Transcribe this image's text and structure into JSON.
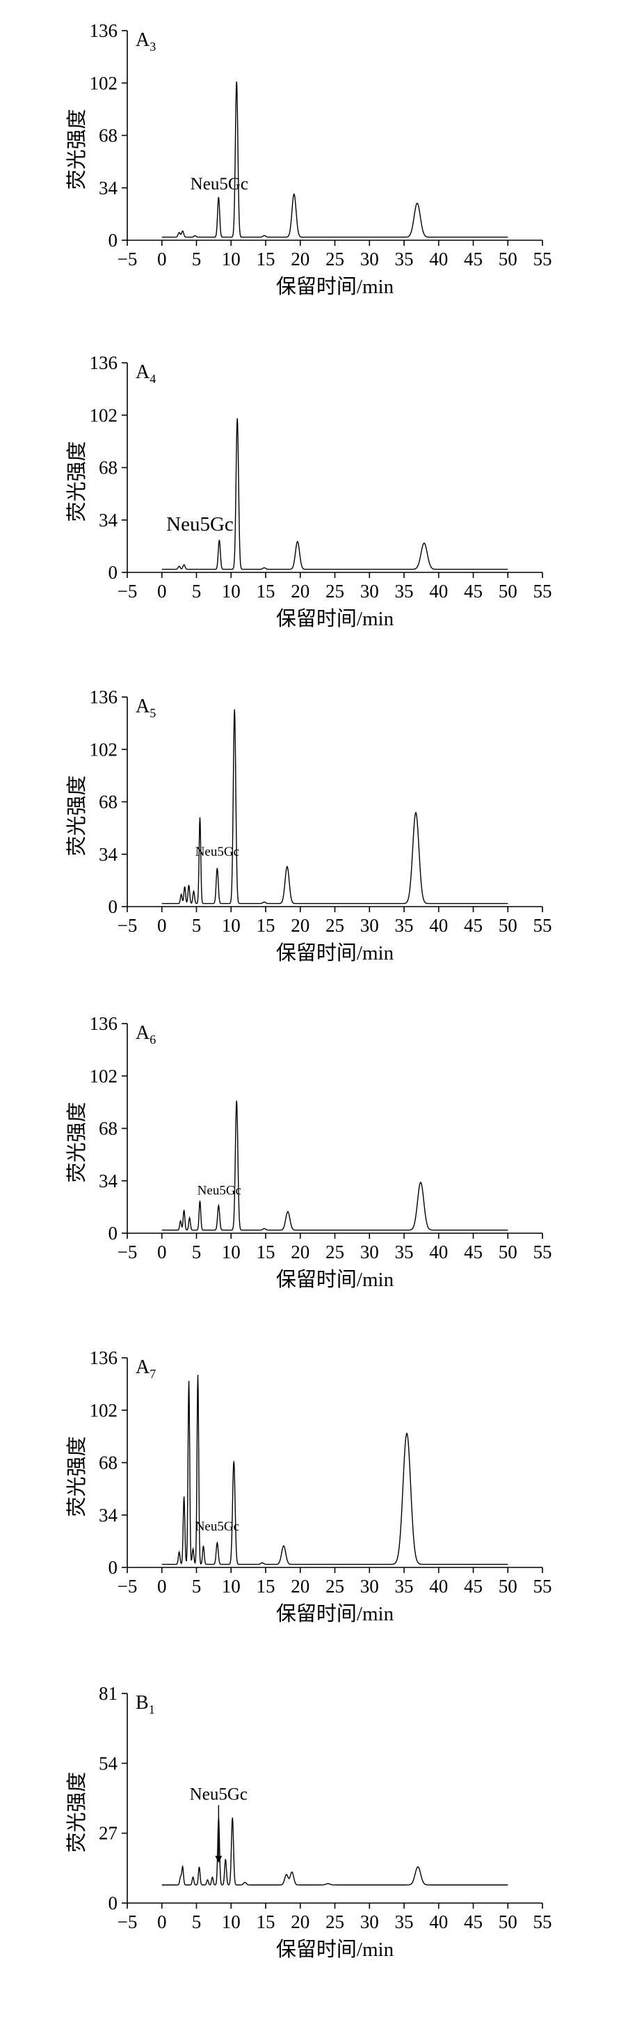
{
  "chart_data": [
    {
      "type": "line",
      "panel_label": "A",
      "panel_label_sub": "3",
      "xlabel": "保留时间/min",
      "ylabel": "荧光强度",
      "xlim": [
        -5,
        55
      ],
      "ylim": [
        0,
        136
      ],
      "xticks": [
        -5,
        0,
        5,
        10,
        15,
        20,
        25,
        30,
        35,
        40,
        45,
        50,
        55
      ],
      "yticks": [
        0,
        34,
        68,
        102,
        136
      ],
      "annotations": [
        {
          "text": "Neu5Gc",
          "x": 8.3,
          "y": 33,
          "arrow": false
        }
      ],
      "baseline": 2,
      "x_range": [
        0,
        50
      ],
      "peaks": [
        {
          "x": 2.5,
          "y": 5,
          "w": 0.15
        },
        {
          "x": 3.0,
          "y": 6,
          "w": 0.15
        },
        {
          "x": 4.8,
          "y": 3,
          "w": 0.15
        },
        {
          "x": 8.2,
          "y": 28,
          "w": 0.15
        },
        {
          "x": 10.8,
          "y": 103,
          "w": 0.18
        },
        {
          "x": 14.8,
          "y": 3,
          "w": 0.2
        },
        {
          "x": 19.1,
          "y": 30,
          "w": 0.3
        },
        {
          "x": 21.0,
          "y": 2,
          "w": 0.2
        },
        {
          "x": 36.9,
          "y": 24,
          "w": 0.45
        }
      ]
    },
    {
      "type": "line",
      "panel_label": "A",
      "panel_label_sub": "4",
      "xlabel": "保留时间/min",
      "ylabel": "荧光强度",
      "xlim": [
        -5,
        55
      ],
      "ylim": [
        0,
        136
      ],
      "xticks": [
        -5,
        0,
        5,
        10,
        15,
        20,
        25,
        30,
        35,
        40,
        45,
        50,
        55
      ],
      "yticks": [
        0,
        34,
        68,
        102,
        136
      ],
      "annotations": [
        {
          "text": "Neu5Gc",
          "x": 5.5,
          "y": 27,
          "arrow": false
        }
      ],
      "baseline": 2,
      "x_range": [
        0,
        50
      ],
      "peaks": [
        {
          "x": 2.5,
          "y": 4,
          "w": 0.15
        },
        {
          "x": 3.2,
          "y": 5,
          "w": 0.15
        },
        {
          "x": 8.3,
          "y": 21,
          "w": 0.15
        },
        {
          "x": 10.9,
          "y": 100,
          "w": 0.18
        },
        {
          "x": 14.8,
          "y": 3,
          "w": 0.2
        },
        {
          "x": 19.6,
          "y": 20,
          "w": 0.3
        },
        {
          "x": 21.5,
          "y": 2,
          "w": 0.2
        },
        {
          "x": 37.9,
          "y": 19,
          "w": 0.45
        }
      ]
    },
    {
      "type": "line",
      "panel_label": "A",
      "panel_label_sub": "5",
      "xlabel": "保留时间/min",
      "ylabel": "荧光强度",
      "xlim": [
        -5,
        55
      ],
      "ylim": [
        0,
        136
      ],
      "xticks": [
        -5,
        0,
        5,
        10,
        15,
        20,
        25,
        30,
        35,
        40,
        45,
        50,
        55
      ],
      "yticks": [
        0,
        34,
        68,
        102,
        136
      ],
      "annotations": [
        {
          "text": "Neu5Gc",
          "x": 8.0,
          "y": 33,
          "arrow": false
        }
      ],
      "baseline": 2,
      "x_range": [
        0,
        50
      ],
      "peaks": [
        {
          "x": 2.8,
          "y": 8,
          "w": 0.12
        },
        {
          "x": 3.3,
          "y": 13,
          "w": 0.12
        },
        {
          "x": 3.9,
          "y": 14,
          "w": 0.12
        },
        {
          "x": 4.6,
          "y": 10,
          "w": 0.12
        },
        {
          "x": 5.5,
          "y": 58,
          "w": 0.12
        },
        {
          "x": 8.0,
          "y": 25,
          "w": 0.15
        },
        {
          "x": 10.5,
          "y": 128,
          "w": 0.18
        },
        {
          "x": 14.8,
          "y": 3,
          "w": 0.2
        },
        {
          "x": 18.1,
          "y": 26,
          "w": 0.3
        },
        {
          "x": 21.3,
          "y": 2,
          "w": 0.2
        },
        {
          "x": 36.7,
          "y": 61,
          "w": 0.45
        }
      ]
    },
    {
      "type": "line",
      "panel_label": "A",
      "panel_label_sub": "6",
      "xlabel": "保留时间/min",
      "ylabel": "荧光强度",
      "xlim": [
        -5,
        55
      ],
      "ylim": [
        0,
        136
      ],
      "xticks": [
        -5,
        0,
        5,
        10,
        15,
        20,
        25,
        30,
        35,
        40,
        45,
        50,
        55
      ],
      "yticks": [
        0,
        34,
        68,
        102,
        136
      ],
      "annotations": [
        {
          "text": "Neu5Gc",
          "x": 8.3,
          "y": 25,
          "arrow": false
        }
      ],
      "baseline": 2,
      "x_range": [
        0,
        50
      ],
      "peaks": [
        {
          "x": 2.7,
          "y": 8,
          "w": 0.12
        },
        {
          "x": 3.2,
          "y": 15,
          "w": 0.12
        },
        {
          "x": 4.0,
          "y": 10,
          "w": 0.12
        },
        {
          "x": 5.5,
          "y": 21,
          "w": 0.12
        },
        {
          "x": 8.2,
          "y": 18,
          "w": 0.15
        },
        {
          "x": 10.8,
          "y": 86,
          "w": 0.18
        },
        {
          "x": 14.8,
          "y": 3,
          "w": 0.2
        },
        {
          "x": 18.2,
          "y": 14,
          "w": 0.3
        },
        {
          "x": 21.5,
          "y": 2,
          "w": 0.2
        },
        {
          "x": 37.4,
          "y": 33,
          "w": 0.45
        }
      ]
    },
    {
      "type": "line",
      "panel_label": "A",
      "panel_label_sub": "7",
      "xlabel": "保留时间/min",
      "ylabel": "荧光强度",
      "xlim": [
        -5,
        55
      ],
      "ylim": [
        0,
        136
      ],
      "xticks": [
        -5,
        0,
        5,
        10,
        15,
        20,
        25,
        30,
        35,
        40,
        45,
        50,
        55
      ],
      "yticks": [
        0,
        34,
        68,
        102,
        136
      ],
      "annotations": [
        {
          "text": "Neu5Gc",
          "x": 8.0,
          "y": 24,
          "arrow": false
        }
      ],
      "baseline": 2,
      "x_range": [
        0,
        50
      ],
      "peaks": [
        {
          "x": 2.5,
          "y": 10,
          "w": 0.12
        },
        {
          "x": 3.2,
          "y": 46,
          "w": 0.12
        },
        {
          "x": 3.9,
          "y": 121,
          "w": 0.12
        },
        {
          "x": 4.5,
          "y": 12,
          "w": 0.12
        },
        {
          "x": 5.2,
          "y": 125,
          "w": 0.12
        },
        {
          "x": 6.0,
          "y": 14,
          "w": 0.12
        },
        {
          "x": 8.0,
          "y": 16,
          "w": 0.15
        },
        {
          "x": 10.4,
          "y": 69,
          "w": 0.18
        },
        {
          "x": 14.5,
          "y": 3,
          "w": 0.2
        },
        {
          "x": 17.6,
          "y": 14,
          "w": 0.3
        },
        {
          "x": 35.4,
          "y": 87,
          "w": 0.55
        }
      ]
    },
    {
      "type": "line",
      "panel_label": "B",
      "panel_label_sub": "1",
      "xlabel": "保留时间/min",
      "ylabel": "荧光强度",
      "xlim": [
        -5,
        55
      ],
      "ylim": [
        0,
        81
      ],
      "xticks": [
        -5,
        0,
        5,
        10,
        15,
        20,
        25,
        30,
        35,
        40,
        45,
        50,
        55
      ],
      "yticks": [
        0,
        27,
        54,
        81
      ],
      "annotations": [
        {
          "text": "Neu5Gc",
          "x": 8.2,
          "y": 40,
          "arrow": true,
          "arrow_to": 15
        }
      ],
      "baseline": 7,
      "x_range": [
        0,
        50
      ],
      "peaks": [
        {
          "x": 2.7,
          "y": 10,
          "w": 0.12
        },
        {
          "x": 3.0,
          "y": 14,
          "w": 0.12
        },
        {
          "x": 4.5,
          "y": 10,
          "w": 0.12
        },
        {
          "x": 5.4,
          "y": 14,
          "w": 0.12
        },
        {
          "x": 6.6,
          "y": 9,
          "w": 0.12
        },
        {
          "x": 7.3,
          "y": 10,
          "w": 0.12
        },
        {
          "x": 8.2,
          "y": 33,
          "w": 0.13
        },
        {
          "x": 9.2,
          "y": 17,
          "w": 0.13
        },
        {
          "x": 10.2,
          "y": 33,
          "w": 0.15
        },
        {
          "x": 12.0,
          "y": 8,
          "w": 0.2
        },
        {
          "x": 18.0,
          "y": 11,
          "w": 0.25
        },
        {
          "x": 18.8,
          "y": 12,
          "w": 0.25
        },
        {
          "x": 24.0,
          "y": 7.5,
          "w": 0.3
        },
        {
          "x": 37.0,
          "y": 14,
          "w": 0.4
        }
      ]
    }
  ]
}
